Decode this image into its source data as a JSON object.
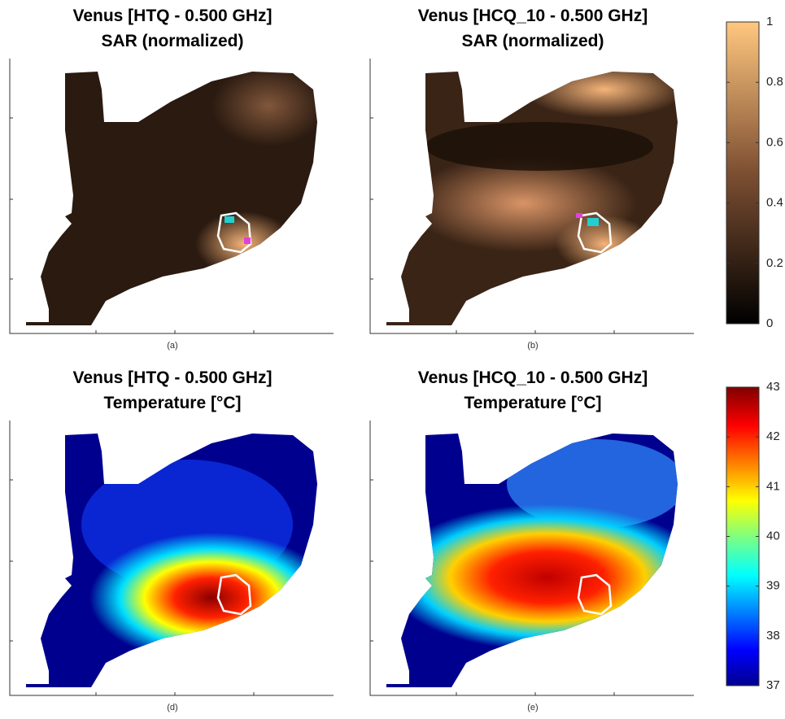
{
  "panels": [
    {
      "title": [
        "Venus [HTQ - 0.500 GHz]",
        "SAR (normalized)"
      ],
      "caption": "(a)"
    },
    {
      "title": [
        "Venus [HCQ_10 - 0.500 GHz]",
        "SAR (normalized)"
      ],
      "caption": "(b)"
    },
    {
      "title": [
        "Venus [HTQ - 0.500 GHz]",
        "Temperature [°C]"
      ],
      "caption": "(d)"
    },
    {
      "title": [
        "Venus [HCQ_10 - 0.500 GHz]",
        "Temperature [°C]"
      ],
      "caption": "(e)"
    }
  ],
  "colorbars": [
    {
      "lim": [
        0,
        1
      ],
      "ticks": [
        0,
        0.2,
        0.4,
        0.6,
        0.8,
        1
      ]
    },
    {
      "lim": [
        37,
        43
      ],
      "ticks": [
        37,
        38,
        39,
        40,
        41,
        42,
        43
      ]
    }
  ]
}
